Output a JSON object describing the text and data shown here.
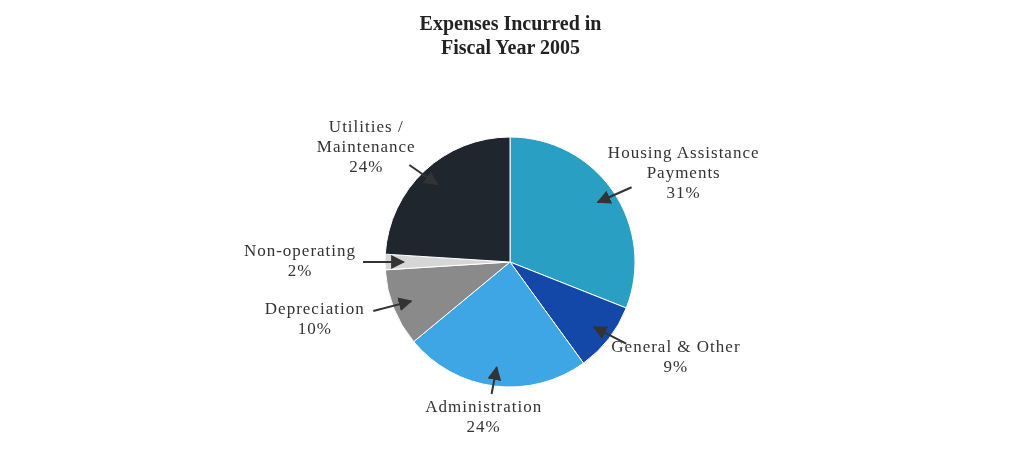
{
  "chart_data": {
    "type": "pie",
    "title": "Expenses Incurred in\nFiscal Year 2005",
    "categories": [
      "Housing Assistance Payments",
      "General & Other",
      "Administration",
      "Depreciation",
      "Non-operating",
      "Utilities / Maintenance"
    ],
    "values": [
      31,
      9,
      24,
      10,
      2,
      24
    ],
    "colors": [
      "#2a9fc4",
      "#1448a8",
      "#3fa6e6",
      "#8a8a8a",
      "#d6d6d6",
      "#1f262e"
    ],
    "value_labels": [
      "31%",
      "9%",
      "24%",
      "10%",
      "2%",
      "24%"
    ]
  }
}
